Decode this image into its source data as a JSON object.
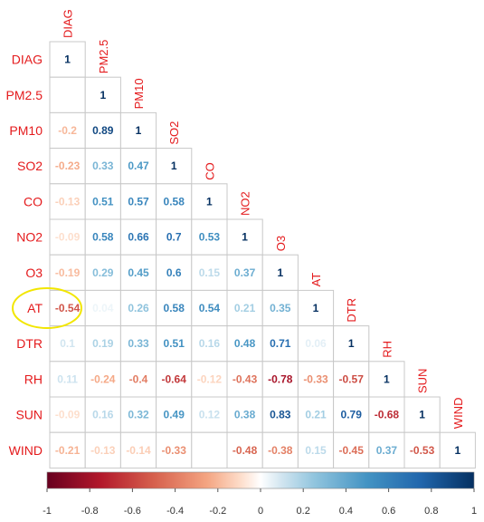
{
  "chart_data": {
    "type": "heatmap",
    "variables": [
      "DIAG",
      "PM2.5",
      "PM10",
      "SO2",
      "CO",
      "NO2",
      "O3",
      "AT",
      "DTR",
      "RH",
      "SUN",
      "WIND"
    ],
    "matrix": [
      [
        1
      ],
      [
        null,
        1
      ],
      [
        -0.2,
        0.89,
        1
      ],
      [
        -0.23,
        0.33,
        0.47,
        1
      ],
      [
        -0.13,
        0.51,
        0.57,
        0.58,
        1
      ],
      [
        -0.09,
        0.58,
        0.66,
        0.7,
        0.53,
        1
      ],
      [
        -0.19,
        0.29,
        0.45,
        0.6,
        0.15,
        0.37,
        1
      ],
      [
        -0.54,
        0.04,
        0.26,
        0.58,
        0.54,
        0.21,
        0.35,
        1
      ],
      [
        0.1,
        0.19,
        0.33,
        0.51,
        0.16,
        0.48,
        0.71,
        0.06,
        1
      ],
      [
        0.11,
        -0.24,
        -0.4,
        -0.64,
        -0.12,
        -0.43,
        -0.78,
        -0.33,
        -0.57,
        1
      ],
      [
        -0.09,
        0.16,
        0.32,
        0.49,
        0.12,
        0.38,
        0.83,
        0.21,
        0.79,
        -0.68,
        1
      ],
      [
        -0.21,
        -0.13,
        -0.14,
        -0.33,
        null,
        -0.48,
        -0.38,
        0.15,
        -0.45,
        0.37,
        -0.53,
        1
      ]
    ],
    "colorbar": {
      "ticks": [
        "-1",
        "-0.8",
        "-0.6",
        "-0.4",
        "-0.2",
        "0",
        "0.2",
        "0.4",
        "0.6",
        "0.8",
        "1"
      ],
      "range": [
        -1,
        1
      ]
    },
    "highlight": {
      "row": "AT",
      "col": "DIAG",
      "color": "#f2e600"
    },
    "colors": {
      "negative_end": "#67001f",
      "positive_end": "#053061",
      "label": "#e41a1c",
      "grid": "#c8c8c8"
    }
  }
}
